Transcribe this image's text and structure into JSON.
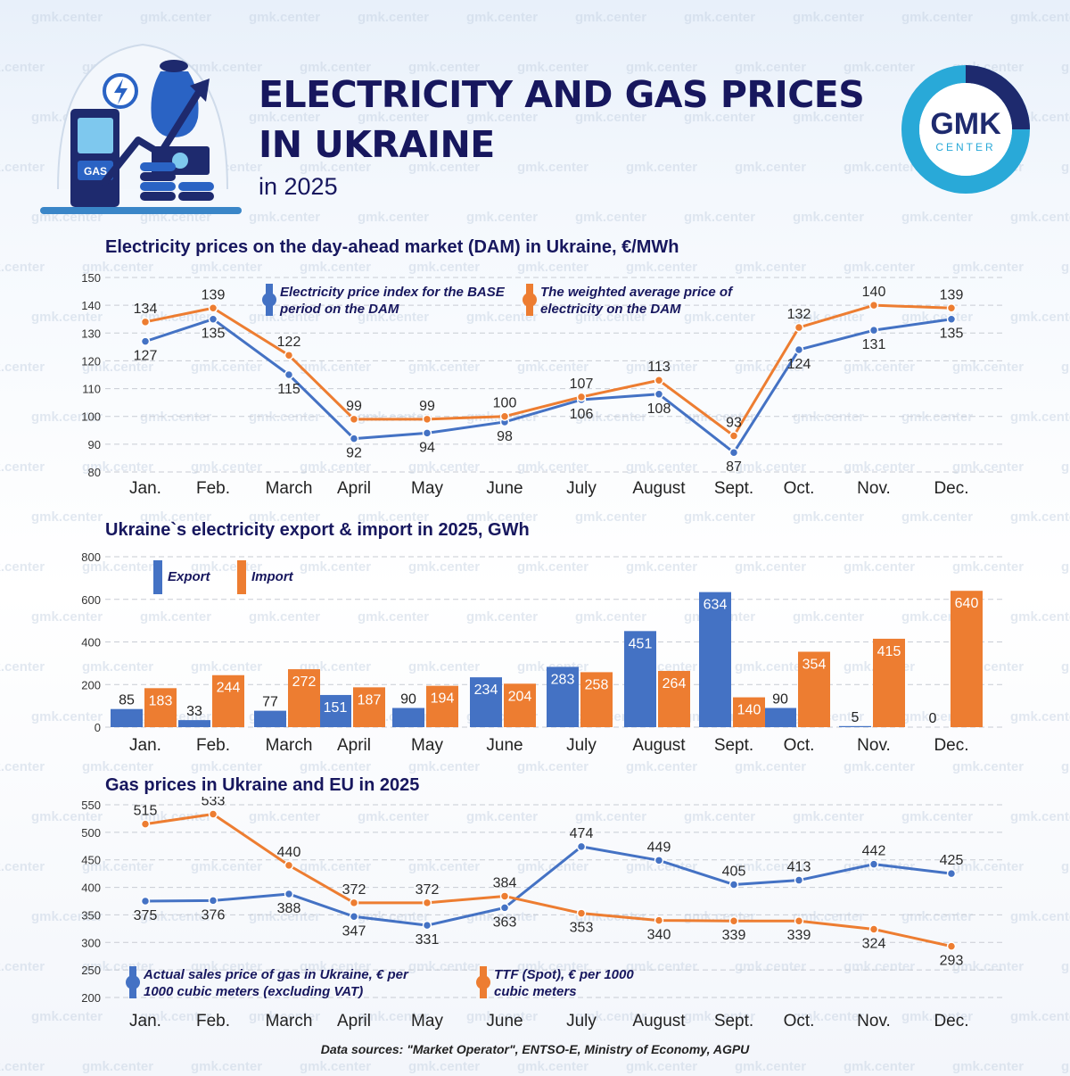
{
  "header": {
    "title_line1": "ELECTRICITY AND GAS PRICES",
    "title_line2": "IN UKRAINE",
    "subtitle": "in 2025",
    "logo_text1": "GMK",
    "logo_text2": "CENTER",
    "hero_badge": "GAS",
    "watermark": "gmk.center"
  },
  "colors": {
    "blue": "#4472c4",
    "orange": "#ed7d31",
    "navy": "#17175e",
    "logo_ring": "#29a9d8"
  },
  "icons": [
    "lightning-icon",
    "money-bag-icon",
    "growth-arrow-icon",
    "gas-station-icon",
    "coins-icon",
    "banknote-icon"
  ],
  "months": [
    "Jan.",
    "Feb.",
    "March",
    "April",
    "May",
    "June",
    "July",
    "August",
    "Sept.",
    "Oct.",
    "Nov.",
    "Dec."
  ],
  "sections": {
    "dam_title": "Electricity prices on the day-ahead market (DAM) in Ukraine, €/MWh",
    "trade_title": "Ukraine`s electricity export & import in 2025, GWh",
    "gas_title": "Gas prices in Ukraine and EU in 2025"
  },
  "source_note": "Data sources: \"Market Operator\", ENTSO-E, Ministry of Economy, AGPU",
  "chart_data": [
    {
      "type": "line",
      "title": "Electricity prices on the day-ahead market (DAM) in Ukraine, €/MWh",
      "categories": [
        "Jan.",
        "Feb.",
        "March",
        "April",
        "May",
        "June",
        "July",
        "August",
        "Sept.",
        "Oct.",
        "Nov.",
        "Dec."
      ],
      "ylim": [
        80,
        150
      ],
      "yticks": [
        80,
        90,
        100,
        110,
        120,
        130,
        140,
        150
      ],
      "grid": true,
      "series": [
        {
          "name": "Electricity price index for the BASE period on the DAM",
          "color": "#4472c4",
          "values": [
            127,
            135,
            115,
            92,
            94,
            98,
            106,
            108,
            87,
            124,
            131,
            135
          ]
        },
        {
          "name": "The weighted average price of electricity on the DAM",
          "color": "#ed7d31",
          "values": [
            134,
            139,
            122,
            99,
            99,
            100,
            107,
            113,
            93,
            132,
            140,
            139
          ]
        }
      ]
    },
    {
      "type": "bar",
      "title": "Ukraine`s electricity export & import in 2025, GWh",
      "categories": [
        "Jan.",
        "Feb.",
        "March",
        "April",
        "May",
        "June",
        "July",
        "August",
        "Sept.",
        "Oct.",
        "Nov.",
        "Dec."
      ],
      "ylim": [
        0,
        800
      ],
      "yticks": [
        0,
        200,
        400,
        600,
        800
      ],
      "grid": true,
      "series": [
        {
          "name": "Export",
          "color": "#4472c4",
          "values": [
            85,
            33,
            77,
            151,
            90,
            234,
            283,
            451,
            634,
            90,
            5,
            0
          ]
        },
        {
          "name": "Import",
          "color": "#ed7d31",
          "values": [
            183,
            244,
            272,
            187,
            194,
            204,
            258,
            264,
            140,
            354,
            415,
            640
          ]
        }
      ]
    },
    {
      "type": "line",
      "title": "Gas prices in Ukraine and EU in 2025",
      "categories": [
        "Jan.",
        "Feb.",
        "March",
        "April",
        "May",
        "June",
        "July",
        "August",
        "Sept.",
        "Oct.",
        "Nov.",
        "Dec."
      ],
      "ylim": [
        200,
        550
      ],
      "yticks": [
        200,
        250,
        300,
        350,
        400,
        450,
        500,
        550
      ],
      "grid": true,
      "series": [
        {
          "name": "Actual sales price of gas in Ukraine, € per 1000 cubic meters (excluding VAT)",
          "color": "#4472c4",
          "values": [
            375,
            376,
            388,
            347,
            331,
            363,
            474,
            449,
            405,
            413,
            442,
            425
          ]
        },
        {
          "name": "TTF (Spot), € per 1000 cubic meters",
          "color": "#ed7d31",
          "values": [
            515,
            533,
            440,
            372,
            372,
            384,
            353,
            340,
            339,
            339,
            324,
            293
          ]
        }
      ]
    }
  ]
}
